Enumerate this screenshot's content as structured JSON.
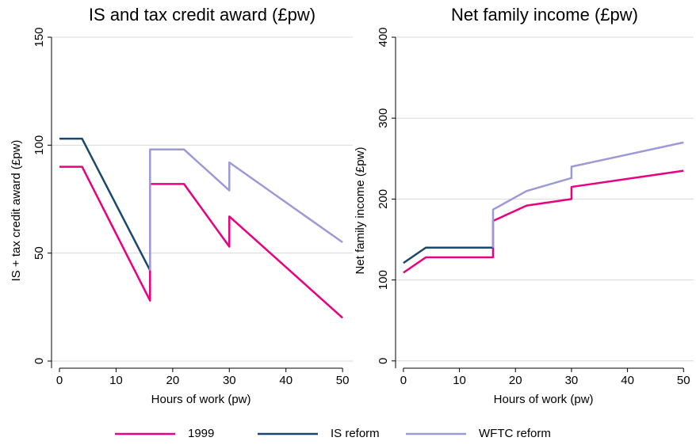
{
  "chart_data": [
    {
      "type": "line",
      "title": "IS and tax credit award (£pw)",
      "x_label": "Hours of work (pw)",
      "y_label": "IS + tax credit award (£pw)",
      "x": [
        0,
        4,
        16,
        16,
        22,
        30,
        30,
        50
      ],
      "series": [
        {
          "name": "1999",
          "color": "#e8007f",
          "values": [
            90,
            90,
            28,
            82,
            82,
            53,
            67,
            20
          ]
        },
        {
          "name": "IS reform",
          "color": "#1a476f",
          "values": [
            103,
            103,
            42,
            null,
            null,
            null,
            null,
            null
          ]
        },
        {
          "name": "WFTC reform",
          "color": "#9c9ad6",
          "values": [
            null,
            null,
            42,
            98,
            98,
            79,
            92,
            55
          ]
        }
      ],
      "xlim": [
        -1.4,
        51.8
      ],
      "ylim": [
        -3.3,
        150
      ],
      "xticks": [
        0,
        10,
        20,
        30,
        40,
        50
      ],
      "yticks": [
        0,
        50,
        100,
        150
      ],
      "grid": true
    },
    {
      "type": "line",
      "title": "Net family income (£pw)",
      "x_label": "Hours of work (pw)",
      "y_label": "Net family income (£pw)",
      "x": [
        0,
        4,
        16,
        16,
        22,
        30,
        30,
        50
      ],
      "series": [
        {
          "color": "#e8007f",
          "values": [
            109,
            128,
            128,
            173,
            192,
            200,
            215,
            235
          ]
        },
        {
          "color": "#1a476f",
          "values": [
            121,
            140,
            140,
            null,
            null,
            null,
            null,
            null
          ]
        },
        {
          "color": "#9c9ad6",
          "values": [
            null,
            null,
            140,
            187,
            210,
            226,
            240,
            270
          ]
        }
      ],
      "xlim": [
        -1.4,
        51.8
      ],
      "ylim": [
        -9,
        400
      ],
      "xticks": [
        0,
        10,
        20,
        30,
        40,
        50
      ],
      "yticks": [
        0,
        100,
        200,
        300,
        400
      ],
      "grid": true
    }
  ]
}
